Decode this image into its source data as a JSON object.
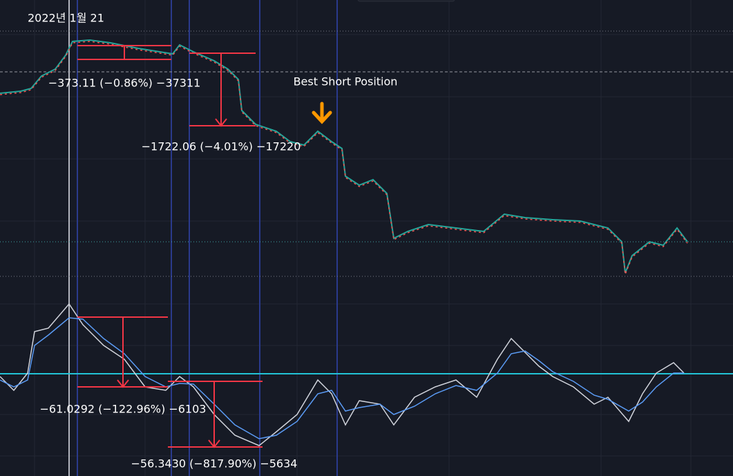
{
  "header": {
    "date": "2022년 1월 21"
  },
  "annotations": {
    "measure_1": "−373.11 (−0.86%) −37311",
    "best_short": "Best Short Position",
    "measure_2": "−1722.06 (−4.01%) −17220",
    "measure_3": "−61.0292 (−122.96%) −6103",
    "measure_4": "−56.3430 (−817.90%) −5634"
  }
}
